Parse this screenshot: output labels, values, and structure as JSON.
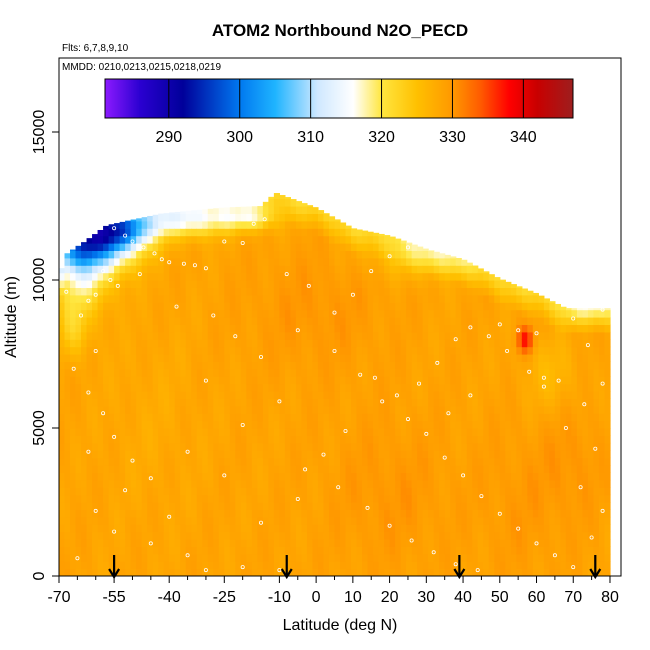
{
  "chart_data": {
    "type": "heatmap",
    "title": "ATOM2 Northbound N2O_PECD",
    "notes": {
      "flights": "Flts: 6,7,8,9,10",
      "dates": "MMDD: 0210,0213,0215,0218,0219"
    },
    "xlabel": "Latitude (deg N)",
    "ylabel": "Altitude (m)",
    "xlim": [
      -70,
      83
    ],
    "ylim": [
      0,
      17500
    ],
    "x_ticks": [
      -70,
      -55,
      -40,
      -25,
      -10,
      0,
      10,
      20,
      30,
      40,
      50,
      60,
      70,
      80
    ],
    "x_tick_labels": [
      "-70",
      "-55",
      "-40",
      "-25",
      "-10",
      "0",
      "10",
      "20",
      "30",
      "40",
      "50",
      "60",
      "70",
      "80"
    ],
    "x_minor_ticks": [
      -65,
      -60,
      -50,
      -45,
      -35,
      -30,
      -20,
      -15,
      -5,
      5,
      15,
      25,
      35,
      45,
      55,
      65,
      75
    ],
    "y_ticks": [
      0,
      5000,
      10000,
      15000
    ],
    "y_tick_labels": [
      "0",
      "5000",
      "10000",
      "15000"
    ],
    "colorbar": {
      "range": [
        281,
        347
      ],
      "ticks": [
        290,
        300,
        310,
        320,
        330,
        340
      ],
      "tick_labels": [
        "290",
        "300",
        "310",
        "320",
        "330",
        "340"
      ],
      "stops": [
        {
          "v": 281,
          "c": "#8c1aff"
        },
        {
          "v": 286,
          "c": "#2a00d0"
        },
        {
          "v": 292,
          "c": "#00009a"
        },
        {
          "v": 300,
          "c": "#0078f0"
        },
        {
          "v": 305,
          "c": "#1fb4ff"
        },
        {
          "v": 311,
          "c": "#cfe8ff"
        },
        {
          "v": 316,
          "c": "#ffffff"
        },
        {
          "v": 320,
          "c": "#ffe640"
        },
        {
          "v": 325,
          "c": "#ffc000"
        },
        {
          "v": 330,
          "c": "#ff9800"
        },
        {
          "v": 334,
          "c": "#ff5a00"
        },
        {
          "v": 338,
          "c": "#ff0000"
        },
        {
          "v": 342,
          "c": "#c80000"
        },
        {
          "v": 347,
          "c": "#9e1e1e"
        }
      ]
    },
    "field": {
      "lat_range": [
        -70,
        80
      ],
      "background_value": 328.5,
      "top_profile": [
        {
          "lat": -70,
          "alt": 9200
        },
        {
          "lat": -69,
          "alt": 10800
        },
        {
          "lat": -63,
          "alt": 11300
        },
        {
          "lat": -57,
          "alt": 11850
        },
        {
          "lat": -42,
          "alt": 12250
        },
        {
          "lat": -25,
          "alt": 12450
        },
        {
          "lat": -15,
          "alt": 12500
        },
        {
          "lat": -11,
          "alt": 12950
        },
        {
          "lat": 0,
          "alt": 12450
        },
        {
          "lat": 10,
          "alt": 11750
        },
        {
          "lat": 20,
          "alt": 11500
        },
        {
          "lat": 30,
          "alt": 11050
        },
        {
          "lat": 40,
          "alt": 10700
        },
        {
          "lat": 50,
          "alt": 10050
        },
        {
          "lat": 60,
          "alt": 9550
        },
        {
          "lat": 68,
          "alt": 9050
        },
        {
          "lat": 80,
          "alt": 9050
        }
      ],
      "features": [
        {
          "lat": -60,
          "alt": 11300,
          "slat": 7,
          "salt": 700,
          "dv": -24
        },
        {
          "lat": -52,
          "alt": 11700,
          "slat": 6,
          "salt": 500,
          "dv": -16
        },
        {
          "lat": -64,
          "alt": 10200,
          "slat": 5,
          "salt": 900,
          "dv": -10
        },
        {
          "lat": -66,
          "alt": 8400,
          "slat": 3,
          "salt": 700,
          "dv": -5
        },
        {
          "lat": -35,
          "alt": 12000,
          "slat": 8,
          "salt": 400,
          "dv": -9
        },
        {
          "lat": -18,
          "alt": 12100,
          "slat": 6,
          "salt": 300,
          "dv": -7
        },
        {
          "lat": 30,
          "alt": 10800,
          "slat": 10,
          "salt": 500,
          "dv": -5
        },
        {
          "lat": 75,
          "alt": 9200,
          "slat": 5,
          "salt": 400,
          "dv": -6
        },
        {
          "lat": 57,
          "alt": 8000,
          "slat": 1.5,
          "salt": 300,
          "dv": 9
        },
        {
          "lat": 64,
          "alt": 6800,
          "slat": 5,
          "salt": 900,
          "dv": -2.5
        },
        {
          "lat": 0,
          "alt": 9000,
          "slat": 14,
          "salt": 1500,
          "dv": 1.5
        },
        {
          "lat": 20,
          "alt": 2800,
          "slat": 12,
          "salt": 1800,
          "dv": 1.5
        },
        {
          "lat": 55,
          "alt": 2500,
          "slat": 8,
          "salt": 2000,
          "dv": 1.2
        },
        {
          "lat": -45,
          "alt": 5500,
          "slat": 10,
          "salt": 2500,
          "dv": -0.8
        },
        {
          "lat": 70,
          "alt": 3800,
          "slat": 6,
          "salt": 1500,
          "dv": 1.5
        }
      ]
    },
    "samples": [
      [
        -57,
        11900
      ],
      [
        -55,
        11750
      ],
      [
        -52,
        11500
      ],
      [
        -50,
        11300
      ],
      [
        -47,
        11100
      ],
      [
        -44,
        10900
      ],
      [
        -42,
        10700
      ],
      [
        -40,
        10600
      ],
      [
        -36,
        10550
      ],
      [
        -33,
        10500
      ],
      [
        -30,
        10400
      ],
      [
        -58,
        10300
      ],
      [
        -56,
        10000
      ],
      [
        -54,
        9800
      ],
      [
        -60,
        9500
      ],
      [
        -64,
        8800
      ],
      [
        -25,
        11300
      ],
      [
        -20,
        11250
      ],
      [
        -17,
        11900
      ],
      [
        -14,
        12050
      ],
      [
        -60,
        7600
      ],
      [
        -66,
        7000
      ],
      [
        -62,
        6200
      ],
      [
        -58,
        5500
      ],
      [
        -55,
        4700
      ],
      [
        -62,
        4200
      ],
      [
        -50,
        3900
      ],
      [
        -45,
        3300
      ],
      [
        -52,
        2900
      ],
      [
        -60,
        2200
      ],
      [
        -40,
        2000
      ],
      [
        -55,
        1500
      ],
      [
        -45,
        1100
      ],
      [
        -35,
        700
      ],
      [
        -65,
        600
      ],
      [
        -30,
        200
      ],
      [
        -20,
        300
      ],
      [
        -10,
        200
      ],
      [
        -15,
        1800
      ],
      [
        -5,
        2600
      ],
      [
        -25,
        3400
      ],
      [
        -35,
        4200
      ],
      [
        -20,
        5100
      ],
      [
        -10,
        5900
      ],
      [
        -30,
        6600
      ],
      [
        -15,
        7400
      ],
      [
        -5,
        8300
      ],
      [
        5,
        8900
      ],
      [
        10,
        9500
      ],
      [
        15,
        10300
      ],
      [
        20,
        10800
      ],
      [
        25,
        11100
      ],
      [
        30,
        11300
      ],
      [
        35,
        11400
      ],
      [
        40,
        11200
      ],
      [
        45,
        11100
      ],
      [
        50,
        10900
      ],
      [
        55,
        10500
      ],
      [
        60,
        10100
      ],
      [
        65,
        9800
      ],
      [
        70,
        9600
      ],
      [
        75,
        9200
      ],
      [
        78,
        9000
      ],
      [
        5,
        7600
      ],
      [
        12,
        6800
      ],
      [
        18,
        5900
      ],
      [
        25,
        5300
      ],
      [
        30,
        4800
      ],
      [
        35,
        4000
      ],
      [
        40,
        3400
      ],
      [
        45,
        2700
      ],
      [
        50,
        2100
      ],
      [
        55,
        1600
      ],
      [
        60,
        1100
      ],
      [
        65,
        700
      ],
      [
        70,
        300
      ],
      [
        75,
        1300
      ],
      [
        78,
        2200
      ],
      [
        72,
        3000
      ],
      [
        76,
        4300
      ],
      [
        68,
        5000
      ],
      [
        73,
        5800
      ],
      [
        62,
        6400
      ],
      [
        58,
        6900
      ],
      [
        52,
        7600
      ],
      [
        47,
        8100
      ],
      [
        42,
        8400
      ],
      [
        38,
        8000
      ],
      [
        33,
        7200
      ],
      [
        28,
        6500
      ],
      [
        22,
        6100
      ],
      [
        16,
        6700
      ],
      [
        8,
        4900
      ],
      [
        2,
        4100
      ],
      [
        -3,
        3600
      ],
      [
        6,
        3000
      ],
      [
        14,
        2300
      ],
      [
        20,
        1700
      ],
      [
        26,
        1200
      ],
      [
        32,
        800
      ],
      [
        38,
        400
      ],
      [
        44,
        200
      ],
      [
        -62,
        9300
      ],
      [
        -38,
        9100
      ],
      [
        -28,
        8800
      ],
      [
        -22,
        8100
      ],
      [
        50,
        8500
      ],
      [
        55,
        8300
      ],
      [
        60,
        8200
      ],
      [
        62,
        6700
      ],
      [
        66,
        6600
      ],
      [
        70,
        8700
      ],
      [
        74,
        7800
      ],
      [
        78,
        6500
      ],
      [
        42,
        6100
      ],
      [
        36,
        5500
      ],
      [
        -8,
        10200
      ],
      [
        -2,
        9800
      ],
      [
        -48,
        10200
      ],
      [
        -68,
        9600
      ]
    ],
    "arrows": [
      -55,
      -8,
      39,
      76
    ]
  }
}
